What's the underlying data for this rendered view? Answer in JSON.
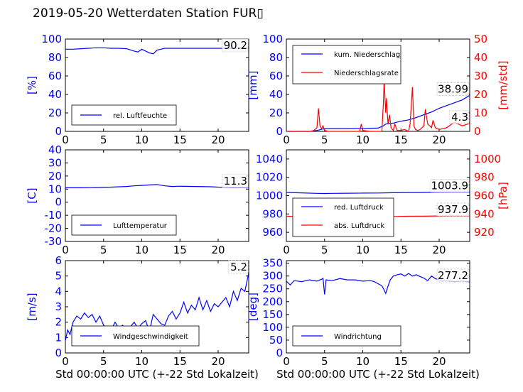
{
  "title": "2019-05-20 Wetterdaten Station FUR▯",
  "chart_data": [
    {
      "id": "humidity",
      "type": "line",
      "xlim": [
        0,
        24
      ],
      "xticks": [
        0,
        5,
        10,
        15,
        20
      ],
      "ylim": [
        0,
        100
      ],
      "yticks": [
        0,
        20,
        40,
        60,
        80,
        100
      ],
      "ylabel": "[%]",
      "xlabel": "",
      "series": [
        {
          "name": "rel. Luftfeuchte",
          "color": "#0000ff",
          "x": [
            0,
            1,
            2,
            3,
            4,
            5,
            6,
            7,
            8,
            9,
            9.5,
            10,
            10.5,
            11,
            11.5,
            12,
            12.5,
            13,
            14,
            15,
            16,
            17,
            18,
            19,
            20,
            21,
            22,
            23,
            24
          ],
          "y": [
            89,
            89,
            89.5,
            90,
            90.5,
            90.5,
            90,
            90,
            89.5,
            87,
            86,
            89,
            87,
            85,
            84,
            88,
            89,
            90,
            90,
            90,
            90,
            90,
            90,
            90,
            90,
            90,
            90,
            90.2,
            90.2
          ]
        }
      ],
      "annotation": "90.2",
      "grid": false,
      "legend": "lower-left"
    },
    {
      "id": "precipitation",
      "type": "line",
      "xlim": [
        0,
        24
      ],
      "xticks": [
        0,
        5,
        10,
        15,
        20
      ],
      "ylim": [
        0,
        100
      ],
      "yticks": [
        0,
        20,
        40,
        60,
        80,
        100
      ],
      "ylabel": "[mm]",
      "y2lim": [
        0,
        50
      ],
      "y2ticks": [
        0,
        10,
        20,
        30,
        40,
        50
      ],
      "y2label": "[mm/std]",
      "series": [
        {
          "name": "kum. Niederschlag",
          "color": "#0000ff",
          "axis": "left",
          "x": [
            0,
            3,
            4,
            4.5,
            5,
            8,
            10,
            12,
            12.7,
            13,
            14,
            15,
            16,
            17,
            18,
            19,
            20,
            21,
            22,
            23,
            24
          ],
          "y": [
            0,
            0,
            1,
            2,
            3,
            3,
            3.2,
            3.5,
            6,
            8,
            9,
            11,
            12.5,
            15,
            18,
            21,
            25,
            28,
            31,
            34,
            38.99
          ]
        },
        {
          "name": "Niederschlagsrate",
          "color": "#ff0000",
          "axis": "right",
          "x": [
            0,
            3.2,
            3.6,
            4,
            4.2,
            4.4,
            4.6,
            4.8,
            5,
            5.5,
            9.6,
            9.8,
            10,
            11,
            12.5,
            12.7,
            12.8,
            13,
            13.1,
            13.3,
            13.5,
            13.7,
            14,
            14.2,
            14.5,
            15,
            15.5,
            16,
            16.2,
            16.5,
            16.7,
            16.9,
            17.2,
            17.5,
            18,
            18.2,
            18.5,
            19,
            19.2,
            19.5,
            20,
            21,
            22,
            23,
            24
          ],
          "y": [
            0,
            0,
            0.5,
            2,
            12.5,
            3,
            1.5,
            3,
            0.5,
            0,
            0,
            4,
            0.5,
            0,
            0,
            15,
            28,
            10,
            18,
            4,
            9,
            2,
            0.5,
            4,
            0.5,
            0.5,
            1,
            0,
            4,
            24,
            3,
            1,
            0.5,
            1,
            3,
            12,
            4,
            2,
            6,
            2,
            1,
            2,
            5,
            3,
            4.3
          ]
        }
      ],
      "annotations": [
        "38.99",
        "4.3"
      ],
      "grid": false,
      "legend": "top-left"
    },
    {
      "id": "temperature",
      "type": "line",
      "xlim": [
        0,
        24
      ],
      "xticks": [
        0,
        5,
        10,
        15,
        20
      ],
      "ylim": [
        -30,
        40
      ],
      "yticks": [
        -30,
        -20,
        -10,
        0,
        10,
        20,
        30,
        40
      ],
      "ylabel": "[C]",
      "series": [
        {
          "name": "Lufttemperatur",
          "color": "#0000ff",
          "x": [
            0,
            2,
            4,
            6,
            8,
            9,
            10,
            11,
            12,
            13,
            14,
            15,
            17,
            19,
            20,
            22,
            24
          ],
          "y": [
            11,
            11,
            11.2,
            11.5,
            12,
            12.5,
            12.8,
            13.2,
            13.5,
            12.5,
            12,
            12.2,
            12,
            11.8,
            11.5,
            11.3,
            11.3
          ]
        }
      ],
      "annotation": "11.3",
      "grid": false,
      "legend": "lower-left"
    },
    {
      "id": "pressure",
      "type": "line",
      "xlim": [
        0,
        24
      ],
      "xticks": [
        0,
        5,
        10,
        15,
        20
      ],
      "ylim": [
        950,
        1050
      ],
      "yticks": [
        960,
        980,
        1000,
        1020,
        1040
      ],
      "ylabel": "",
      "y2lim": [
        910,
        1010
      ],
      "y2ticks": [
        920,
        940,
        960,
        980,
        1000
      ],
      "y2label": "[hPa]",
      "series": [
        {
          "name": "red. Luftdruck",
          "color": "#0000ff",
          "axis": "left",
          "x": [
            0,
            2,
            4,
            5,
            6,
            8,
            10,
            12,
            14,
            16,
            18,
            20,
            22,
            24
          ],
          "y": [
            1003.5,
            1003,
            1002.5,
            1002.3,
            1002.5,
            1002.6,
            1002.8,
            1002.9,
            1003.2,
            1003.4,
            1003.5,
            1003.7,
            1003.9,
            1003.9
          ]
        },
        {
          "name": "abs. Luftdruck",
          "color": "#ff0000",
          "axis": "right",
          "x": [
            0,
            2,
            4,
            5,
            6,
            8,
            10,
            12,
            14,
            16,
            18,
            20,
            22,
            24
          ],
          "y": [
            937.5,
            937,
            936.5,
            936.3,
            936.5,
            936.7,
            936.9,
            937.1,
            937.3,
            937.5,
            937.6,
            937.8,
            937.9,
            937.9
          ]
        }
      ],
      "annotations": [
        "1003.9",
        "937.9"
      ],
      "grid": false,
      "legend": "lower-left"
    },
    {
      "id": "windspeed",
      "type": "line",
      "xlim": [
        0,
        24
      ],
      "xticks": [
        0,
        5,
        10,
        15,
        20
      ],
      "ylim": [
        0,
        6
      ],
      "yticks": [
        0,
        1,
        2,
        3,
        4,
        5,
        6
      ],
      "ylabel": "[m/s]",
      "xlabel": "Std 00:00:00 UTC (+-22 Std Lokalzeit)",
      "series": [
        {
          "name": "Windgeschwindigkeit",
          "color": "#0000ff",
          "x": [
            0,
            0.3,
            0.6,
            1,
            1.5,
            2,
            2.5,
            3,
            3.5,
            4,
            4.5,
            5,
            5.5,
            6,
            6.5,
            7,
            7.5,
            8,
            8.5,
            9,
            9.5,
            10,
            10.5,
            11,
            11.5,
            12,
            12.5,
            13,
            13.5,
            14,
            14.5,
            15,
            15.5,
            16,
            16.5,
            17,
            17.5,
            18,
            18.5,
            19,
            19.5,
            20,
            20.5,
            21,
            21.5,
            22,
            22.5,
            23,
            23.5,
            24
          ],
          "y": [
            0.8,
            1.5,
            1.2,
            2.0,
            2.4,
            2.2,
            2.6,
            2.3,
            2.5,
            2.0,
            2.4,
            1.8,
            1.6,
            1.5,
            2.0,
            1.6,
            1.8,
            1.4,
            1.7,
            2.0,
            1.6,
            1.9,
            2.1,
            1.4,
            2.5,
            2.2,
            1.9,
            1.8,
            2.4,
            2.7,
            2.2,
            2.6,
            3.3,
            2.6,
            3.1,
            2.8,
            3.6,
            2.8,
            3.4,
            2.7,
            3.2,
            3.0,
            3.3,
            3.6,
            3.0,
            4.0,
            3.4,
            4.2,
            4.0,
            5.2
          ]
        }
      ],
      "annotation": "5.2",
      "grid": false,
      "legend": "lower-left"
    },
    {
      "id": "winddirection",
      "type": "line",
      "xlim": [
        0,
        24
      ],
      "xticks": [
        0,
        5,
        10,
        15,
        20
      ],
      "ylim": [
        0,
        360
      ],
      "yticks": [
        0,
        50,
        100,
        150,
        200,
        250,
        300,
        350
      ],
      "ylabel": "[deg]",
      "xlabel": "Std 00:00:00 UTC (+-22 Std Lokalzeit)",
      "series": [
        {
          "name": "Windrichtung",
          "color": "#0000ff",
          "x": [
            0,
            0.5,
            1,
            2,
            3,
            4,
            4.8,
            5,
            5.2,
            6,
            7,
            8,
            9,
            10,
            11,
            11.5,
            12,
            12.5,
            12.8,
            13,
            13.3,
            13.6,
            14,
            14.5,
            15,
            15.5,
            16,
            16.5,
            17,
            17.5,
            18,
            18.5,
            19,
            19.5,
            20,
            21,
            22,
            23,
            24
          ],
          "y": [
            280,
            265,
            282,
            278,
            285,
            280,
            290,
            228,
            285,
            282,
            290,
            285,
            285,
            280,
            282,
            278,
            270,
            262,
            245,
            232,
            260,
            285,
            300,
            305,
            308,
            300,
            310,
            300,
            305,
            298,
            292,
            282,
            300,
            290,
            285,
            282,
            278,
            280,
            277.2
          ]
        }
      ],
      "annotation": "277.2",
      "grid": false,
      "legend": "lower-left"
    }
  ]
}
